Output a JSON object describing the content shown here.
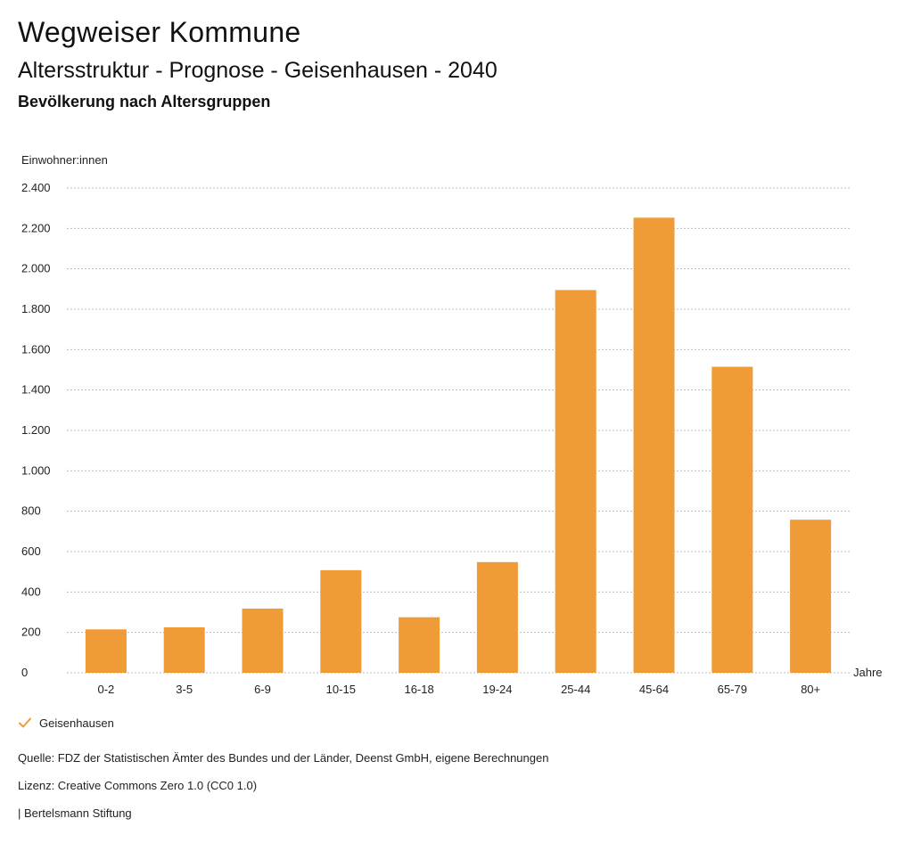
{
  "header": {
    "app_title": "Wegweiser Kommune",
    "title": "Altersstruktur - Prognose - Geisenhausen - 2040",
    "subtitle": "Bevölkerung nach Altersgruppen"
  },
  "chart_data": {
    "type": "bar",
    "ylabel": "Einwohner:innen",
    "xlabel": "Jahre",
    "ylim": [
      0,
      2400
    ],
    "yticks": [
      0,
      200,
      400,
      600,
      800,
      1000,
      1200,
      1400,
      1600,
      1800,
      2000,
      2200,
      2400
    ],
    "ytick_labels": [
      "0",
      "200",
      "400",
      "600",
      "800",
      "1.000",
      "1.200",
      "1.400",
      "1.600",
      "1.800",
      "2.000",
      "2.200",
      "2.400"
    ],
    "categories": [
      "0-2",
      "3-5",
      "6-9",
      "10-15",
      "16-18",
      "19-24",
      "25-44",
      "45-64",
      "65-79",
      "80+"
    ],
    "series": [
      {
        "name": "Geisenhausen",
        "values": [
          215,
          225,
          318,
          508,
          275,
          548,
          1895,
          2253,
          1515,
          758
        ]
      }
    ],
    "grid": true,
    "legend_position": "bottom-left"
  },
  "colors": {
    "bar": "#ee9b38",
    "grid": "#bbbbbb",
    "check": "#ee9b38"
  },
  "legend": {
    "items": [
      {
        "label": "Geisenhausen",
        "icon": "check-icon"
      }
    ]
  },
  "footer": {
    "source": "Quelle: FDZ der Statistischen Ämter des Bundes und der Länder, Deenst GmbH, eigene Berechnungen",
    "license": "Lizenz: Creative Commons Zero 1.0 (CC0 1.0)",
    "publisher": "| Bertelsmann Stiftung"
  }
}
